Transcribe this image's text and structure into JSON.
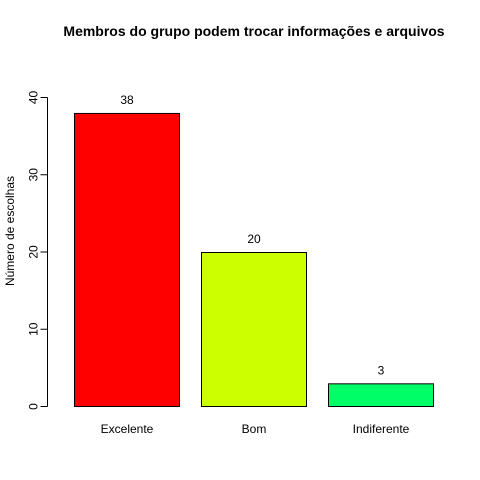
{
  "chart_data": {
    "type": "bar",
    "title": "Membros do grupo podem trocar informações e arquivos",
    "xlabel": "",
    "ylabel": "Número de escolhas",
    "categories": [
      "Excelente",
      "Bom",
      "Indiferente"
    ],
    "values": [
      38,
      20,
      3
    ],
    "data_labels": [
      "38",
      "20",
      "3"
    ],
    "colors": [
      "#FF0000",
      "#CCFF00",
      "#00FF66"
    ],
    "ylim": [
      0,
      40
    ],
    "yticks": [
      0,
      10,
      20,
      30,
      40
    ],
    "ytick_labels": [
      "0",
      "10",
      "20",
      "30",
      "40"
    ],
    "grid": false,
    "legend": "none"
  }
}
